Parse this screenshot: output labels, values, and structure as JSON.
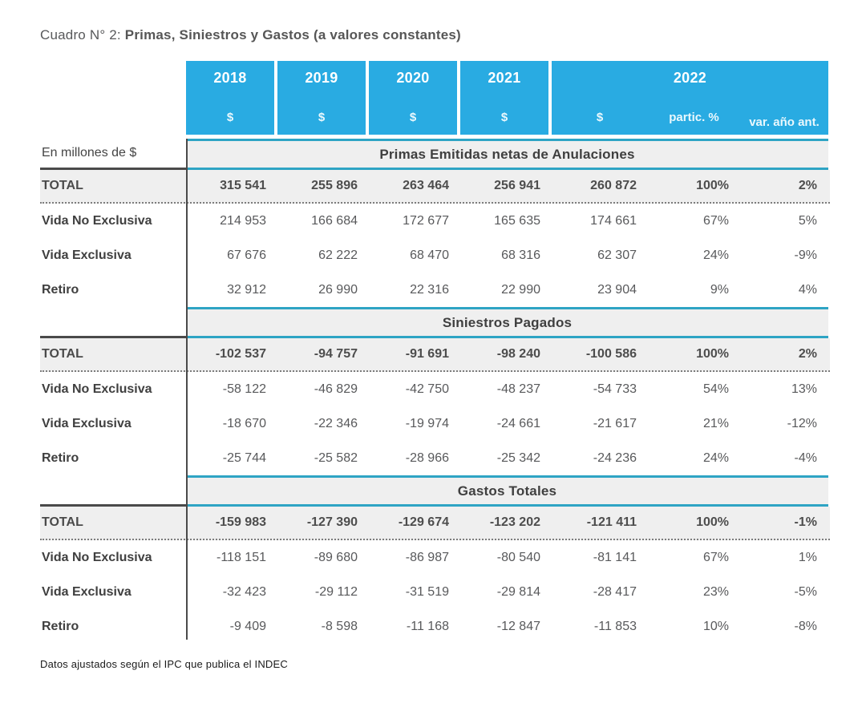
{
  "page": {
    "title_prefix": "Cuadro N° 2:",
    "title_bold": "Primas, Siniestros y Gastos (a valores constantes)",
    "side_label": "En millones de $",
    "footnote": "Datos ajustados según el IPC que publica el INDEC"
  },
  "header": {
    "years": [
      "2018",
      "2019",
      "2020",
      "2021"
    ],
    "currency_symbol": "$",
    "group_2022": {
      "label": "2022",
      "sub": [
        "$",
        "partic. %",
        "var. año ant."
      ]
    }
  },
  "colors": {
    "header_blue": "#29ABE2",
    "accent_cyan": "#2EA4C4",
    "band_gray": "#EFEFEF",
    "dark_line": "#4A4A4A",
    "number_gray": "#58595B"
  },
  "sections": [
    {
      "band": "Primas Emitidas netas de Anulaciones",
      "rows": [
        {
          "label": "TOTAL",
          "values": [
            "315 541",
            "255 896",
            "263 464",
            "256 941",
            "260 872",
            "100%",
            "2%"
          ]
        },
        {
          "label": "Vida No Exclusiva",
          "values": [
            "214 953",
            "166 684",
            "172 677",
            "165 635",
            "174 661",
            "67%",
            "5%"
          ]
        },
        {
          "label": "Vida Exclusiva",
          "values": [
            "67 676",
            "62 222",
            "68 470",
            "68 316",
            "62 307",
            "24%",
            "-9%"
          ]
        },
        {
          "label": "Retiro",
          "values": [
            "32 912",
            "26 990",
            "22 316",
            "22 990",
            "23 904",
            "9%",
            "4%"
          ]
        }
      ]
    },
    {
      "band": "Siniestros Pagados",
      "rows": [
        {
          "label": "TOTAL",
          "values": [
            "-102 537",
            "-94 757",
            "-91 691",
            "-98 240",
            "-100 586",
            "100%",
            "2%"
          ]
        },
        {
          "label": "Vida No Exclusiva",
          "values": [
            "-58 122",
            "-46 829",
            "-42 750",
            "-48 237",
            "-54 733",
            "54%",
            "13%"
          ]
        },
        {
          "label": "Vida Exclusiva",
          "values": [
            "-18 670",
            "-22 346",
            "-19 974",
            "-24 661",
            "-21 617",
            "21%",
            "-12%"
          ]
        },
        {
          "label": "Retiro",
          "values": [
            "-25 744",
            "-25 582",
            "-28 966",
            "-25 342",
            "-24 236",
            "24%",
            "-4%"
          ]
        }
      ]
    },
    {
      "band": "Gastos Totales",
      "rows": [
        {
          "label": "TOTAL",
          "values": [
            "-159 983",
            "-127 390",
            "-129 674",
            "-123 202",
            "-121 411",
            "100%",
            "-1%"
          ]
        },
        {
          "label": "Vida No Exclusiva",
          "values": [
            "-118 151",
            "-89 680",
            "-86 987",
            "-80 540",
            "-81 141",
            "67%",
            "1%"
          ]
        },
        {
          "label": "Vida Exclusiva",
          "values": [
            "-32 423",
            "-29 112",
            "-31 519",
            "-29 814",
            "-28 417",
            "23%",
            "-5%"
          ]
        },
        {
          "label": "Retiro",
          "values": [
            "-9 409",
            "-8 598",
            "-11 168",
            "-12 847",
            "-11 853",
            "10%",
            "-8%"
          ]
        }
      ]
    }
  ]
}
